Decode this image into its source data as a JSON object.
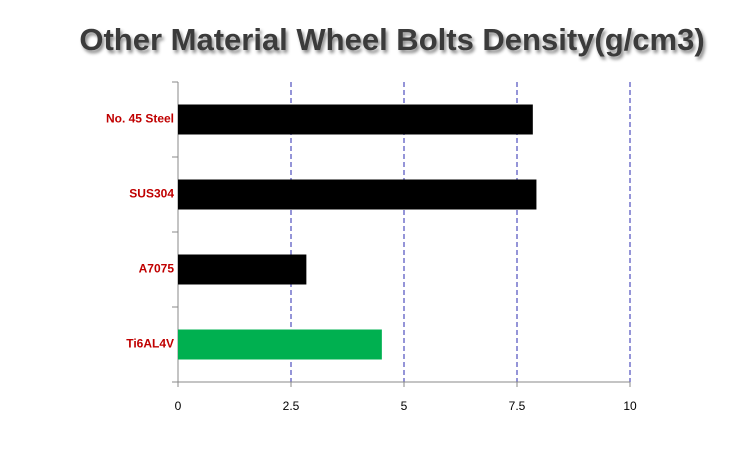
{
  "chart_data": {
    "type": "hbar",
    "title": "Other Material Wheel Bolts Density(g/cm3)",
    "categories": [
      "No. 45 Steel",
      "SUS304",
      "A7075",
      "Ti6AL4V"
    ],
    "values": [
      7.85,
      7.93,
      2.84,
      4.51
    ],
    "colors": [
      "#000000",
      "#000000",
      "#000000",
      "#00b050"
    ],
    "xlim": [
      0,
      10
    ],
    "xticks": [
      0,
      2.5,
      5,
      7.5,
      10
    ],
    "grid": true,
    "grid_color": "#2b2bb0"
  }
}
